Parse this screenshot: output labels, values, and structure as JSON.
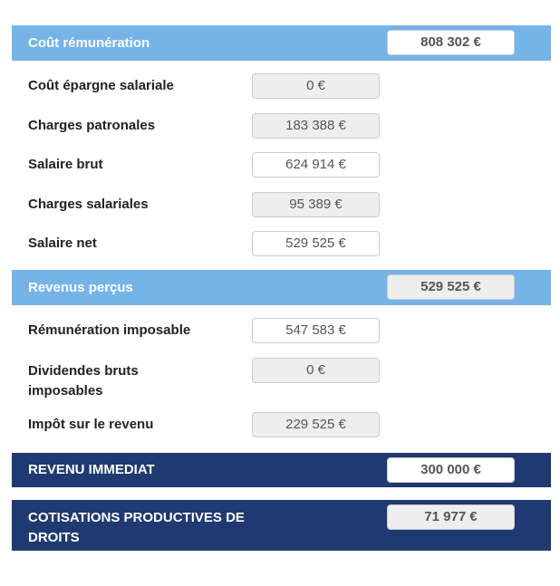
{
  "sections": [
    {
      "title": "Coût rémunération",
      "value": "808 302 €",
      "editable": true
    },
    {
      "title": "Revenus perçus",
      "value": "529 525 €",
      "editable": false
    },
    {
      "title": "REVENU IMMEDIAT",
      "value": "300 000 €",
      "editable": true
    },
    {
      "title": "COTISATIONS PRODUCTIVES DE DROITS",
      "value": "71 977 €",
      "editable": false
    }
  ],
  "rows": [
    {
      "label": "Coût épargne salariale",
      "value": "0 €",
      "editable": false
    },
    {
      "label": "Charges patronales",
      "value": "183 388 €",
      "editable": false
    },
    {
      "label": "Salaire brut",
      "value": "624 914 €",
      "editable": true
    },
    {
      "label": "Charges salariales",
      "value": "95 389 €",
      "editable": false
    },
    {
      "label": "Salaire net",
      "value": "529 525 €",
      "editable": true
    },
    {
      "label": "Rémunération imposable",
      "value": "547 583 €",
      "editable": true
    },
    {
      "label": "Dividendes bruts imposables",
      "value": "0 €",
      "editable": false
    },
    {
      "label": "Impôt sur le revenu",
      "value": "229 525 €",
      "editable": false
    }
  ],
  "colors": {
    "light_header": "#76b4e8",
    "dark_header": "#1f3a70",
    "readonly_field": "#eeeeee"
  }
}
